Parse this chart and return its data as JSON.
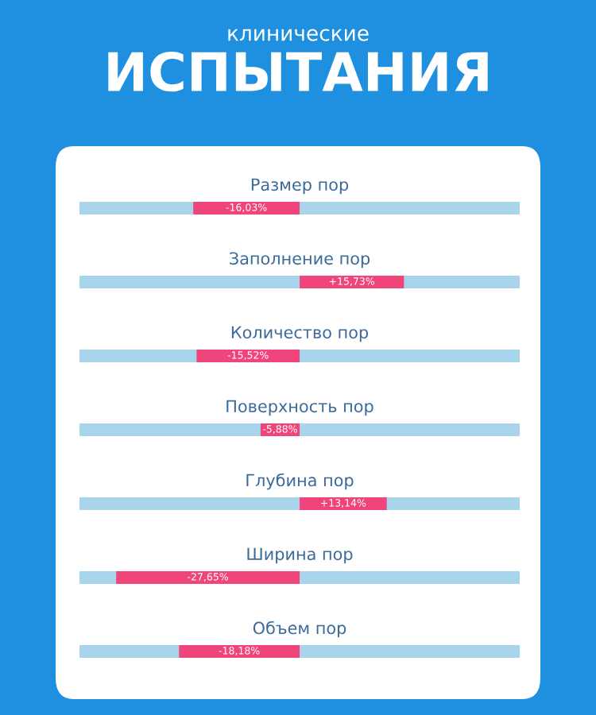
{
  "chart_data": {
    "type": "bar",
    "orientation": "horizontal",
    "subtitle": "клинические",
    "title": "ИСПЫТАНИЯ",
    "categories": [
      "Размер пор",
      "Заполнение пор",
      "Количество пор",
      "Поверхность пор",
      "Глубина пор",
      "Ширина пор",
      "Объем пор"
    ],
    "values": [
      -16.03,
      15.73,
      -15.52,
      -5.88,
      13.14,
      -27.65,
      -18.18
    ],
    "value_labels": [
      "-16,03%",
      "+15,73%",
      "-15,52%",
      "-5,88%",
      "+13,14%",
      "-27,65%",
      "-18,18%"
    ],
    "color": "#f0457a"
  }
}
